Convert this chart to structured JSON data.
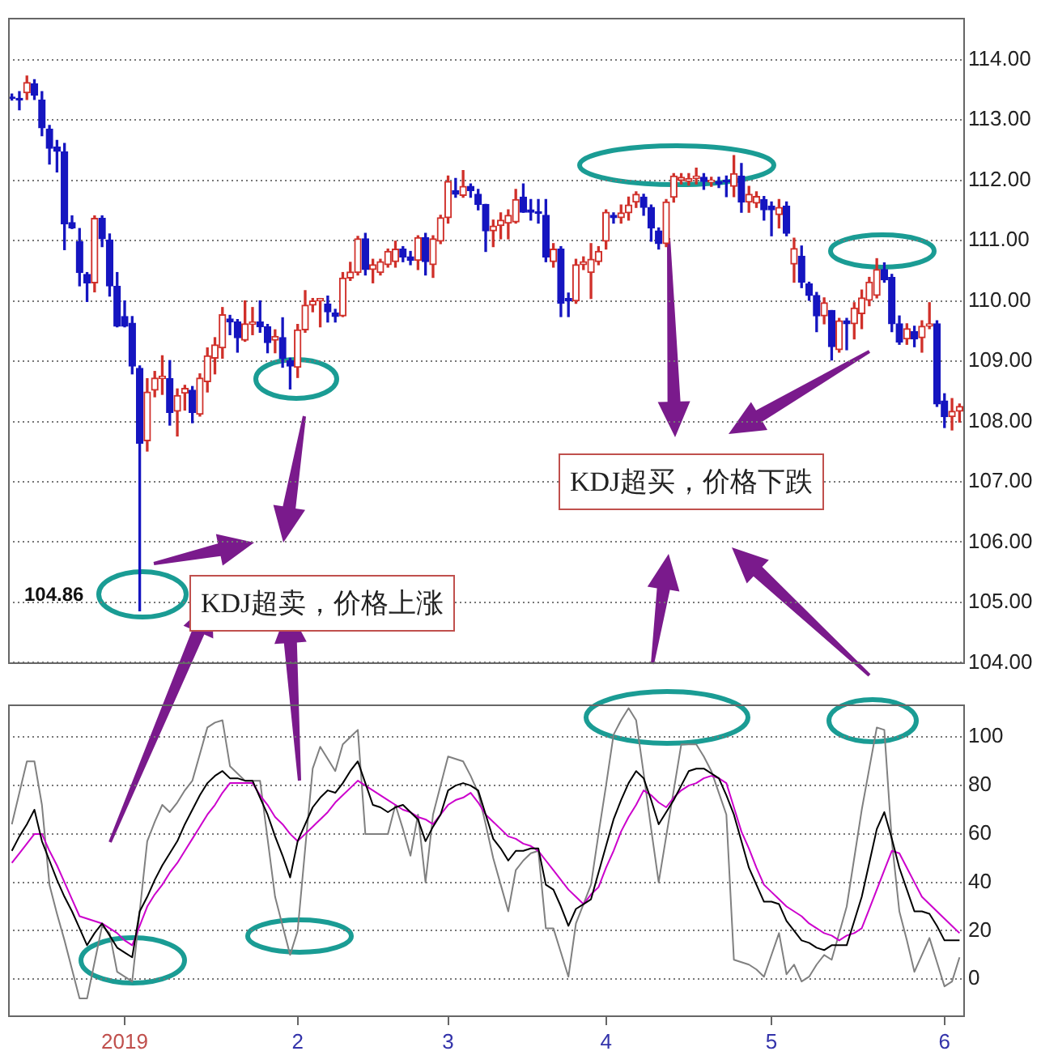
{
  "chart_data": [
    {
      "type": "candlestick",
      "categories": [
        null,
        null,
        null,
        null,
        null,
        null,
        null,
        null,
        null,
        null,
        null,
        null,
        null,
        null,
        null,
        "2019",
        null,
        null,
        null,
        null,
        null,
        null,
        null,
        null,
        null,
        null,
        null,
        null,
        null,
        null,
        null,
        null,
        null,
        null,
        null,
        null,
        null,
        null,
        "2",
        null,
        null,
        null,
        null,
        null,
        null,
        null,
        null,
        null,
        null,
        null,
        null,
        null,
        null,
        null,
        null,
        null,
        null,
        null,
        "3",
        null,
        null,
        null,
        null,
        null,
        null,
        null,
        null,
        null,
        null,
        null,
        null,
        null,
        null,
        null,
        null,
        null,
        null,
        null,
        null,
        "4",
        null,
        null,
        null,
        null,
        null,
        null,
        null,
        null,
        null,
        null,
        null,
        null,
        null,
        null,
        null,
        null,
        null,
        null,
        null,
        null,
        null,
        "5",
        null,
        null,
        null,
        null,
        null,
        null,
        null,
        null,
        null,
        null,
        null,
        null,
        null,
        null,
        null,
        null,
        null,
        null,
        null,
        null,
        null,
        null,
        "6",
        null,
        null
      ],
      "ohlc": [
        [
          113.38,
          113.43,
          113.33,
          113.36
        ],
        [
          113.36,
          113.47,
          113.17,
          113.33
        ],
        [
          113.45,
          113.73,
          113.34,
          113.62
        ],
        [
          113.6,
          113.67,
          113.34,
          113.41
        ],
        [
          113.33,
          113.47,
          112.74,
          112.87
        ],
        [
          112.85,
          112.91,
          112.27,
          112.53
        ],
        [
          112.55,
          112.66,
          112.14,
          112.48
        ],
        [
          112.47,
          112.61,
          110.85,
          111.28
        ],
        [
          111.3,
          111.41,
          111.2,
          111.21
        ],
        [
          110.98,
          111.2,
          110.25,
          110.47
        ],
        [
          110.44,
          110.47,
          109.99,
          110.3
        ],
        [
          110.3,
          111.41,
          110.15,
          111.37
        ],
        [
          111.37,
          111.41,
          110.9,
          111.03
        ],
        [
          111.01,
          111.11,
          110.08,
          110.25
        ],
        [
          110.24,
          110.47,
          109.57,
          109.58
        ],
        [
          109.74,
          110.0,
          109.57,
          109.58
        ],
        [
          109.63,
          109.74,
          108.79,
          108.92
        ],
        [
          108.88,
          108.92,
          104.86,
          107.64
        ],
        [
          107.68,
          108.71,
          107.51,
          108.49
        ],
        [
          108.52,
          108.83,
          108.41,
          108.72
        ],
        [
          108.71,
          109.09,
          108.45,
          108.75
        ],
        [
          108.71,
          109.01,
          107.94,
          108.15
        ],
        [
          108.17,
          108.54,
          107.76,
          108.43
        ],
        [
          108.47,
          108.6,
          108.19,
          108.55
        ],
        [
          108.52,
          108.58,
          107.98,
          108.15
        ],
        [
          108.12,
          108.79,
          108.09,
          108.72
        ],
        [
          108.66,
          109.22,
          108.49,
          109.09
        ],
        [
          109.05,
          109.39,
          108.79,
          109.27
        ],
        [
          109.22,
          109.89,
          109.05,
          109.77
        ],
        [
          109.7,
          109.76,
          109.44,
          109.65
        ],
        [
          109.65,
          109.69,
          109.15,
          109.39
        ],
        [
          109.35,
          110.0,
          109.33,
          109.62
        ],
        [
          109.61,
          109.89,
          109.44,
          109.65
        ],
        [
          109.65,
          110.0,
          109.48,
          109.57
        ],
        [
          109.57,
          109.61,
          109.14,
          109.31
        ],
        [
          109.35,
          109.52,
          109.14,
          109.41
        ],
        [
          109.39,
          109.72,
          108.9,
          109.05
        ],
        [
          109.01,
          109.05,
          108.54,
          108.92
        ],
        [
          108.9,
          109.61,
          108.73,
          109.52
        ],
        [
          109.52,
          110.17,
          109.48,
          109.93
        ],
        [
          109.93,
          110.04,
          109.82,
          110.0
        ],
        [
          110.0,
          110.04,
          109.57,
          110.04
        ],
        [
          109.95,
          110.08,
          109.65,
          109.82
        ],
        [
          109.8,
          109.86,
          109.65,
          109.74
        ],
        [
          109.75,
          110.47,
          109.74,
          110.38
        ],
        [
          110.38,
          110.64,
          110.34,
          110.48
        ],
        [
          110.47,
          111.07,
          110.43,
          111.03
        ],
        [
          111.03,
          111.12,
          110.43,
          110.52
        ],
        [
          110.52,
          110.69,
          110.3,
          110.6
        ],
        [
          110.47,
          110.69,
          110.43,
          110.65
        ],
        [
          110.6,
          110.86,
          110.56,
          110.82
        ],
        [
          110.65,
          110.99,
          110.56,
          110.86
        ],
        [
          110.86,
          110.9,
          110.65,
          110.73
        ],
        [
          110.73,
          110.82,
          110.6,
          110.67
        ],
        [
          110.67,
          111.08,
          110.52,
          111.05
        ],
        [
          111.05,
          111.12,
          110.43,
          110.65
        ],
        [
          110.6,
          111.08,
          110.39,
          111.03
        ],
        [
          110.99,
          111.42,
          110.95,
          111.38
        ],
        [
          111.38,
          112.07,
          111.29,
          111.98
        ],
        [
          111.83,
          112.03,
          111.72,
          111.77
        ],
        [
          111.75,
          112.16,
          111.72,
          111.9
        ],
        [
          111.9,
          111.94,
          111.72,
          111.83
        ],
        [
          111.77,
          111.85,
          111.51,
          111.6
        ],
        [
          111.6,
          111.6,
          110.82,
          111.16
        ],
        [
          111.16,
          111.34,
          110.9,
          111.24
        ],
        [
          111.25,
          111.46,
          111.03,
          111.34
        ],
        [
          111.29,
          111.51,
          111.03,
          111.42
        ],
        [
          111.31,
          111.85,
          111.29,
          111.68
        ],
        [
          111.72,
          111.94,
          111.47,
          111.47
        ],
        [
          111.51,
          111.68,
          111.34,
          111.47
        ],
        [
          111.48,
          111.68,
          111.29,
          111.45
        ],
        [
          111.42,
          111.68,
          110.65,
          110.73
        ],
        [
          110.65,
          110.95,
          110.56,
          110.86
        ],
        [
          110.86,
          110.9,
          109.74,
          109.96
        ],
        [
          110.04,
          110.13,
          109.74,
          110.0
        ],
        [
          110.0,
          110.69,
          109.96,
          110.6
        ],
        [
          110.6,
          110.73,
          110.52,
          110.65
        ],
        [
          110.47,
          110.95,
          110.04,
          110.69
        ],
        [
          110.65,
          110.9,
          110.6,
          110.82
        ],
        [
          110.99,
          111.51,
          110.86,
          111.47
        ],
        [
          111.42,
          111.46,
          111.29,
          111.38
        ],
        [
          111.38,
          111.59,
          111.29,
          111.46
        ],
        [
          111.46,
          111.72,
          111.34,
          111.59
        ],
        [
          111.64,
          111.81,
          111.55,
          111.77
        ],
        [
          111.72,
          111.77,
          111.42,
          111.55
        ],
        [
          111.55,
          111.59,
          110.99,
          111.21
        ],
        [
          111.16,
          111.21,
          110.86,
          110.95
        ],
        [
          110.95,
          111.68,
          110.9,
          111.64
        ],
        [
          111.72,
          112.11,
          111.64,
          112.07
        ],
        [
          112.0,
          112.11,
          111.94,
          112.05
        ],
        [
          111.98,
          112.11,
          111.92,
          112.03
        ],
        [
          112.03,
          112.2,
          111.94,
          112.07
        ],
        [
          112.05,
          112.11,
          111.85,
          111.98
        ],
        [
          111.97,
          112.05,
          111.9,
          112.0
        ],
        [
          111.98,
          112.05,
          111.88,
          111.94
        ],
        [
          112.0,
          112.07,
          111.73,
          111.97
        ],
        [
          111.9,
          112.41,
          111.73,
          112.11
        ],
        [
          112.07,
          112.28,
          111.47,
          111.64
        ],
        [
          111.64,
          111.9,
          111.47,
          111.77
        ],
        [
          111.62,
          111.81,
          111.55,
          111.73
        ],
        [
          111.68,
          111.73,
          111.34,
          111.51
        ],
        [
          111.57,
          111.64,
          111.08,
          111.51
        ],
        [
          111.43,
          111.68,
          111.21,
          111.55
        ],
        [
          111.57,
          111.64,
          111.08,
          111.12
        ],
        [
          110.61,
          111.04,
          110.31,
          110.87
        ],
        [
          110.74,
          110.91,
          110.22,
          110.31
        ],
        [
          110.28,
          110.31,
          110.01,
          110.09
        ],
        [
          110.09,
          110.14,
          109.49,
          109.75
        ],
        [
          109.75,
          110.05,
          109.62,
          109.97
        ],
        [
          109.84,
          109.84,
          109.02,
          109.24
        ],
        [
          109.19,
          109.71,
          109.15,
          109.67
        ],
        [
          109.67,
          109.71,
          109.19,
          109.62
        ],
        [
          109.62,
          109.97,
          109.37,
          109.88
        ],
        [
          109.79,
          110.18,
          109.54,
          110.05
        ],
        [
          110.01,
          110.39,
          109.92,
          110.31
        ],
        [
          110.09,
          110.7,
          110.05,
          110.52
        ],
        [
          110.52,
          110.63,
          110.31,
          110.35
        ],
        [
          110.39,
          110.44,
          109.49,
          109.62
        ],
        [
          109.62,
          109.75,
          109.28,
          109.32
        ],
        [
          109.37,
          109.62,
          109.28,
          109.54
        ],
        [
          109.49,
          109.58,
          109.24,
          109.37
        ],
        [
          109.39,
          109.67,
          109.15,
          109.58
        ],
        [
          109.58,
          109.97,
          109.54,
          109.62
        ],
        [
          109.62,
          109.67,
          108.25,
          108.29
        ],
        [
          108.34,
          108.46,
          107.9,
          108.08
        ],
        [
          108.08,
          108.38,
          107.86,
          108.17
        ],
        [
          108.17,
          108.29,
          107.99,
          108.25
        ]
      ],
      "ylim": [
        104,
        114.7
      ],
      "yticks": [
        {
          "value": 104,
          "label": "104.00"
        },
        {
          "value": 105,
          "label": "105.00"
        },
        {
          "value": 106,
          "label": "106.00"
        },
        {
          "value": 107,
          "label": "107.00"
        },
        {
          "value": 108,
          "label": "108.00"
        },
        {
          "value": 109,
          "label": "109.00"
        },
        {
          "value": 110,
          "label": "110.00"
        },
        {
          "value": 111,
          "label": "111.00"
        },
        {
          "value": 112,
          "label": "112.00"
        },
        {
          "value": 113,
          "label": "113.00"
        },
        {
          "value": 114,
          "label": "114.00"
        }
      ],
      "tick_labels": "y",
      "grid": "y",
      "annotations": [
        "104.86",
        "KDJ超卖，价格上涨",
        "KDJ超买，价格下跌"
      ]
    },
    {
      "type": "line",
      "categories": [
        null,
        null,
        null,
        null,
        null,
        null,
        null,
        null,
        null,
        null,
        null,
        null,
        null,
        null,
        null,
        "2019",
        null,
        null,
        null,
        null,
        null,
        null,
        null,
        null,
        null,
        null,
        null,
        null,
        null,
        null,
        null,
        null,
        null,
        null,
        null,
        null,
        null,
        null,
        "2",
        null,
        null,
        null,
        null,
        null,
        null,
        null,
        null,
        null,
        null,
        null,
        null,
        null,
        null,
        null,
        null,
        null,
        null,
        null,
        "3",
        null,
        null,
        null,
        null,
        null,
        null,
        null,
        null,
        null,
        null,
        null,
        null,
        null,
        null,
        null,
        null,
        null,
        null,
        null,
        null,
        "4",
        null,
        null,
        null,
        null,
        null,
        null,
        null,
        null,
        null,
        null,
        null,
        null,
        null,
        null,
        null,
        null,
        null,
        null,
        null,
        null,
        null,
        "5",
        null,
        null,
        null,
        null,
        null,
        null,
        null,
        null,
        null,
        null,
        null,
        null,
        null,
        null,
        null,
        null,
        null,
        null,
        null,
        null,
        null,
        null,
        "6",
        null,
        null
      ],
      "series": [
        {
          "color": "#000000",
          "values": [
            53,
            59,
            64,
            70,
            57,
            49,
            41,
            34,
            28,
            21,
            14,
            19,
            23,
            18,
            13,
            11,
            9,
            28,
            34,
            41,
            47,
            52,
            57,
            64,
            70,
            76,
            81,
            84,
            86,
            83,
            83,
            82,
            82,
            75,
            68,
            59,
            51,
            42,
            57,
            64,
            71,
            75,
            78,
            77,
            81,
            86,
            90,
            81,
            72,
            71,
            69,
            71,
            72,
            69,
            66,
            57,
            63,
            68,
            78,
            80,
            81,
            80,
            78,
            68,
            58,
            54,
            49,
            53,
            53,
            54,
            54,
            39,
            37,
            30,
            22,
            29,
            31,
            33,
            44,
            55,
            66,
            74,
            81,
            86,
            83,
            74,
            64,
            69,
            74,
            80,
            86,
            87,
            87,
            85,
            83,
            76,
            68,
            57,
            46,
            39,
            32,
            32,
            31,
            24,
            20,
            16,
            15,
            13,
            12,
            14,
            14,
            14,
            24,
            34,
            48,
            62,
            69,
            58,
            46,
            37,
            28,
            28,
            27,
            22,
            16,
            16,
            16
          ]
        },
        {
          "color": "#cc00cc",
          "values": [
            48,
            52,
            56,
            60,
            60,
            53,
            47,
            40,
            33,
            26,
            25,
            24,
            23,
            21,
            19,
            16,
            14,
            22,
            30,
            35,
            39,
            44,
            48,
            53,
            58,
            63,
            68,
            72,
            77,
            81,
            81,
            81,
            81,
            76,
            72,
            67,
            64,
            60,
            57,
            60,
            63,
            66,
            69,
            73,
            76,
            79,
            82,
            80,
            78,
            76,
            74,
            72,
            70,
            69,
            67,
            66,
            64,
            68,
            72,
            74,
            75,
            77,
            73,
            68,
            65,
            62,
            59,
            58,
            56,
            55,
            53,
            49,
            45,
            41,
            37,
            34,
            31,
            35,
            38,
            46,
            53,
            61,
            67,
            72,
            78,
            76,
            73,
            71,
            75,
            78,
            80,
            81,
            83,
            84,
            83,
            81,
            71,
            61,
            54,
            46,
            39,
            36,
            33,
            30,
            28,
            26,
            23,
            21,
            19,
            18,
            16,
            18,
            19,
            21,
            29,
            37,
            45,
            53,
            52,
            46,
            40,
            34,
            31,
            28,
            25,
            22,
            19
          ]
        },
        {
          "color": "#808080",
          "values": [
            64,
            77,
            90,
            90,
            72,
            39,
            27,
            16,
            4,
            -8,
            -8,
            7,
            22,
            19,
            3,
            1,
            -1,
            28,
            57,
            65,
            72,
            69,
            73,
            78,
            82,
            93,
            104,
            106,
            107,
            88,
            85,
            82,
            82,
            82,
            58,
            34,
            22,
            10,
            20,
            54,
            87,
            96,
            91,
            86,
            97,
            100,
            103,
            60,
            60,
            60,
            60,
            72,
            62,
            51,
            68,
            40,
            68,
            80,
            92,
            91,
            90,
            84,
            77,
            64,
            50,
            39,
            28,
            45,
            49,
            52,
            53,
            21,
            21,
            11,
            1,
            23,
            31,
            39,
            60,
            80,
            101,
            107,
            112,
            107,
            85,
            62,
            40,
            59,
            78,
            97,
            97,
            97,
            92,
            86,
            77,
            68,
            8,
            7,
            6,
            4,
            1,
            10,
            19,
            2,
            6,
            -1,
            1,
            6,
            10,
            8,
            19,
            30,
            50,
            70,
            87,
            104,
            103,
            57,
            28,
            16,
            3,
            10,
            17,
            7,
            -3,
            -1,
            9
          ]
        }
      ],
      "ylim": [
        -15,
        113.5
      ],
      "yticks": [
        0,
        20,
        40,
        60,
        80,
        100
      ],
      "grid": "y"
    }
  ]
}
